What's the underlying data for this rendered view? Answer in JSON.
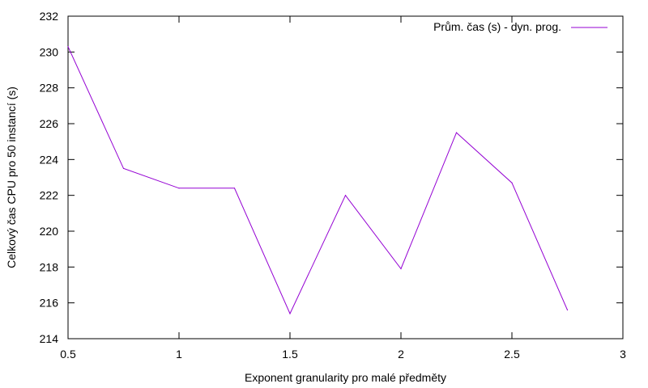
{
  "chart_data": {
    "type": "line",
    "title": "",
    "xlabel": "Exponent granularity pro malé předměty",
    "ylabel": "Celkový čas CPU pro 50 instancí (s)",
    "xlim": [
      0.5,
      3
    ],
    "ylim": [
      214,
      232
    ],
    "xticks": [
      0.5,
      1,
      1.5,
      2,
      2.5,
      3
    ],
    "yticks": [
      214,
      216,
      218,
      220,
      222,
      224,
      226,
      228,
      230,
      232
    ],
    "xtick_labels": [
      "0.5",
      "1",
      "1.5",
      "2",
      "2.5",
      "3"
    ],
    "ytick_labels": [
      "214",
      "216",
      "218",
      "220",
      "222",
      "224",
      "226",
      "228",
      "230",
      "232"
    ],
    "grid": false,
    "legend_position": "top-right",
    "series": [
      {
        "name": "Prům. čas (s) - dyn. prog.",
        "color": "#9400d3",
        "x": [
          0.5,
          0.75,
          1.0,
          1.25,
          1.5,
          1.75,
          2.0,
          2.25,
          2.5,
          2.75
        ],
        "y": [
          230.3,
          223.5,
          222.4,
          222.4,
          215.4,
          222.0,
          217.9,
          225.5,
          222.7,
          215.6
        ]
      }
    ]
  }
}
